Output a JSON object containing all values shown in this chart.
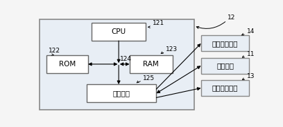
{
  "fig_width": 4.08,
  "fig_height": 1.84,
  "dpi": 100,
  "bg_color": "#f5f5f5",
  "box_white": "#ffffff",
  "box_edge": "#666666",
  "outer_box_fill": "#e8eef5",
  "outer_box_edge": "#888888",
  "right_box_fill": "#e8eef5",
  "right_box_edge": "#888888",
  "cpu_label": "CPU",
  "rom_label": "ROM",
  "ram_label": "RAM",
  "comm_label": "通信接口",
  "module1_label": "状态监测模块",
  "module2_label": "通信模块",
  "module3_label": "工作执行模块",
  "label_12": "12",
  "label_121": "121",
  "label_122": "122",
  "label_123": "123",
  "label_124": "124",
  "label_125": "125",
  "label_14": "14",
  "label_11": "11",
  "label_13": "13",
  "font_size_box": 7.5,
  "font_size_label": 6.5
}
